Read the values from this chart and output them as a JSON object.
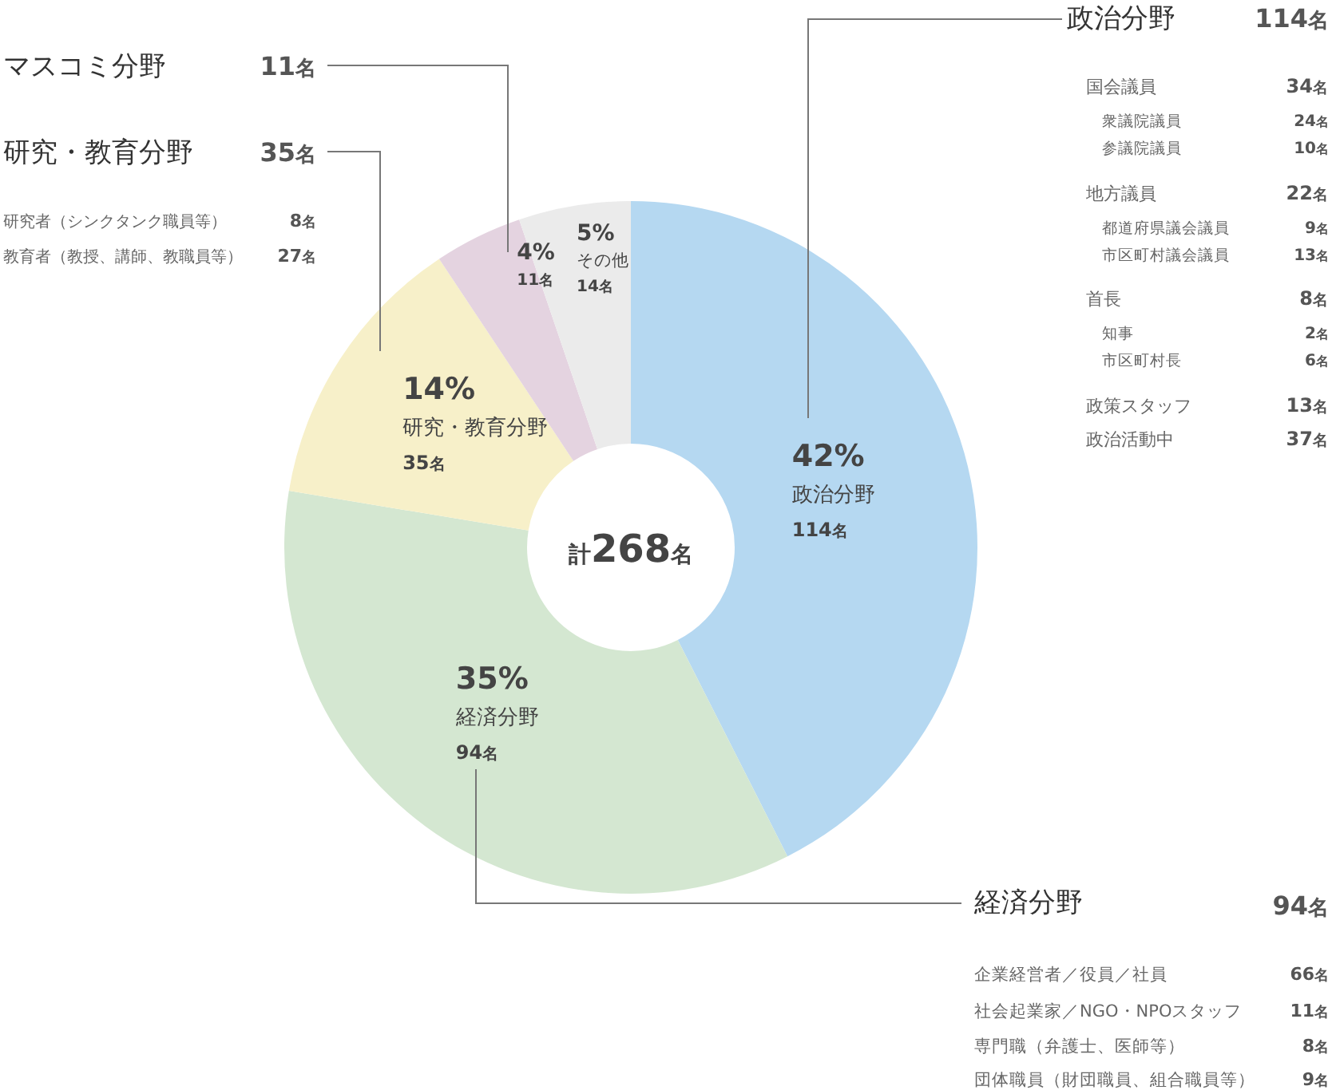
{
  "chart_data": {
    "type": "donut",
    "categories": [
      "政治分野",
      "経済分野",
      "研究・教育分野",
      null,
      "その他"
    ],
    "values": [
      114,
      94,
      35,
      11,
      14
    ],
    "colors": [
      "#b5d8f1",
      "#d4e7d1",
      "#f7f0c9",
      "#e4d3e0",
      "#ebebeb"
    ],
    "value_labels": [
      "42%\n114名",
      "35%\n94名",
      "14%\n35名",
      "4%\n11名",
      "5%\n14名"
    ],
    "annotations": [
      "計268名",
      "政治分野",
      "114名",
      "国会議員",
      "34名",
      "衆議院議員",
      "24名",
      "参議院議員",
      "10名",
      "地方議員",
      "22名",
      "都道府県議会議員",
      "9名",
      "市区町村議会議員",
      "13名",
      "首長",
      "8名",
      "知事",
      "2名",
      "市区町村長",
      "6名",
      "政策スタッフ",
      "13名",
      "政治活動中",
      "37名",
      "経済分野",
      "94名",
      "企業経営者／役員／社員",
      "66名",
      "社会起業家／NGO・NPOスタッフ",
      "11名",
      "専門職（弁護士、医師等）",
      "8名",
      "団体職員（財団職員、組合職員等）",
      "9名",
      "マスコミ分野",
      "11名",
      "研究・教育分野",
      "35名",
      "研究者（シンクタンク職員等）",
      "8名",
      "教育者（教授、講師、教職員等）",
      "27名"
    ]
  }
}
